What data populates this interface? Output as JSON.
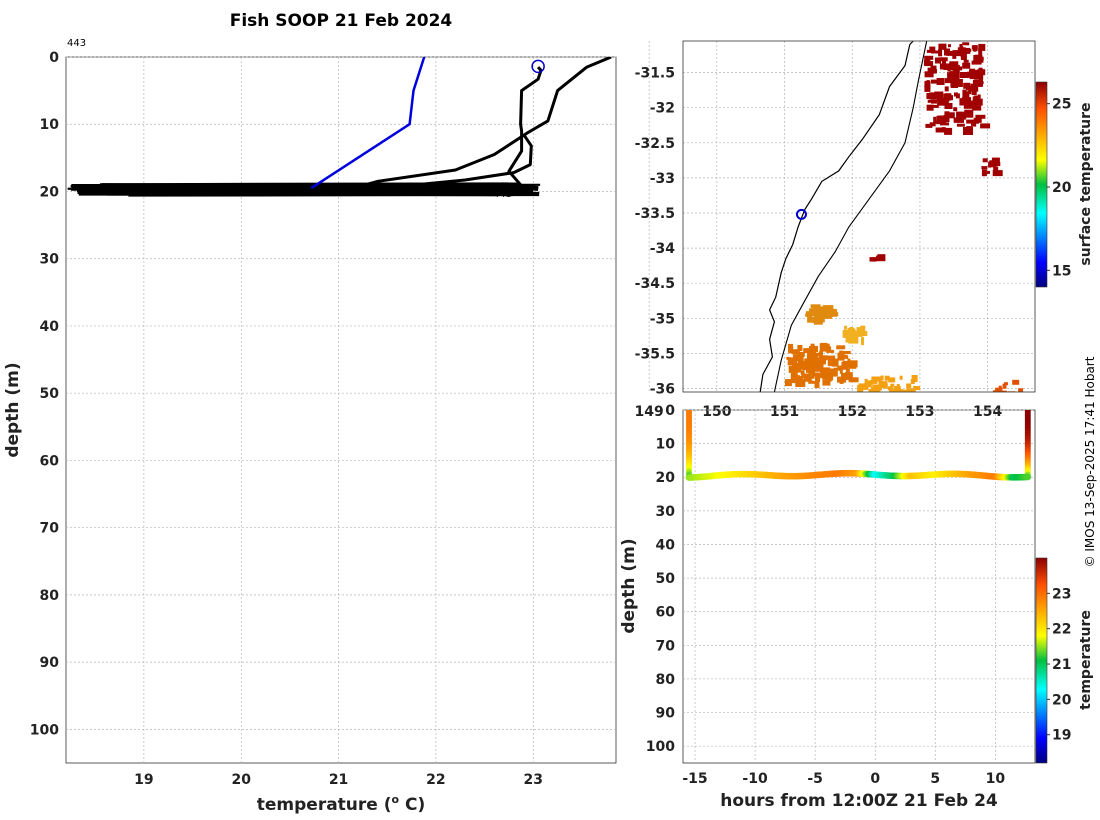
{
  "page_title": "Fish SOOP 21 Feb 2024",
  "copyright": "© IMOS 13-Sep-2025 17:41 Hobart",
  "chart_data": [
    {
      "id": "profile",
      "type": "line",
      "title": "Fish SOOP 21 Feb 2024",
      "xlabel": "temperature (",
      "xlabel_sup": "o",
      "xlabel_end": " C)",
      "ylabel": "depth (m)",
      "xlim": [
        18.2,
        23.85
      ],
      "ylim": [
        0,
        105
      ],
      "y_inverted": true,
      "xticks": [
        "19",
        "20",
        "21",
        "22",
        "23"
      ],
      "yticks": [
        "0",
        "10",
        "20",
        "30",
        "40",
        "50",
        "60",
        "70",
        "80",
        "90",
        "100"
      ],
      "annotations": [
        "443",
        "443"
      ],
      "marker": {
        "temperature": 23.05,
        "depth": 0.8,
        "color": "#0000cc"
      },
      "series": [
        {
          "name": "profile-blue",
          "color": "#0000dd",
          "points": [
            [
              21.88,
              0
            ],
            [
              21.77,
              5
            ],
            [
              21.73,
              10
            ],
            [
              20.72,
              19.5
            ]
          ]
        },
        {
          "name": "profile-black-1",
          "color": "#000000",
          "points": [
            [
              23.05,
              1.5
            ],
            [
              23.08,
              2
            ],
            [
              23.05,
              3.3
            ],
            [
              22.88,
              5
            ],
            [
              22.87,
              10
            ],
            [
              22.88,
              11
            ],
            [
              22.88,
              14
            ],
            [
              22.75,
              17
            ],
            [
              22.9,
              19.5
            ],
            [
              23.05,
              19.7
            ]
          ]
        },
        {
          "name": "profile-black-2",
          "color": "#000000",
          "points": [
            [
              23.8,
              0
            ],
            [
              23.55,
              1.5
            ],
            [
              23.25,
              5
            ],
            [
              23.15,
              9.5
            ],
            [
              22.95,
              11.2
            ],
            [
              22.6,
              14.5
            ],
            [
              22.2,
              16.8
            ],
            [
              21.4,
              18.5
            ],
            [
              21.2,
              19.3
            ],
            [
              21.6,
              19.9
            ]
          ]
        },
        {
          "name": "profile-black-3",
          "color": "#000000",
          "points": [
            [
              22.9,
              11.5
            ],
            [
              22.98,
              13.2
            ],
            [
              22.97,
              16
            ],
            [
              22.8,
              17.2
            ],
            [
              22.3,
              18.3
            ],
            [
              21.8,
              19
            ],
            [
              21.3,
              19.5
            ]
          ]
        }
      ],
      "bottom_band": {
        "depth_min": 18.9,
        "depth_max": 20.6,
        "temp_min": 18.2,
        "temp_max": 23.08
      }
    },
    {
      "id": "map",
      "type": "heatmap",
      "xticks": [
        "149",
        "150",
        "151",
        "152",
        "153",
        "154"
      ],
      "yticks": [
        "-31.5",
        "-32",
        "-32.5",
        "-33",
        "-33.5",
        "-34",
        "-34.5",
        "-35",
        "-35.5",
        "-36"
      ],
      "xlim": [
        149.5,
        154.7
      ],
      "ylim": [
        -36.05,
        -31.05
      ],
      "colorbar": {
        "label": "surface temperature",
        "ticks": [
          "25",
          "20",
          "15"
        ],
        "range": [
          14,
          26.3
        ]
      },
      "marker": {
        "lon": 151.25,
        "lat": -33.52,
        "color": "#0000cc"
      },
      "coastline": [
        [
          150.64,
          -36.05
        ],
        [
          150.68,
          -35.8
        ],
        [
          150.82,
          -35.55
        ],
        [
          150.78,
          -35.3
        ],
        [
          150.85,
          -35.05
        ],
        [
          150.78,
          -34.88
        ],
        [
          150.87,
          -34.7
        ],
        [
          150.95,
          -34.35
        ],
        [
          151.02,
          -34.15
        ],
        [
          151.12,
          -33.95
        ],
        [
          151.2,
          -33.7
        ],
        [
          151.3,
          -33.45
        ],
        [
          151.4,
          -33.3
        ],
        [
          151.55,
          -33.05
        ],
        [
          151.8,
          -32.9
        ],
        [
          151.95,
          -32.7
        ],
        [
          152.15,
          -32.45
        ],
        [
          152.4,
          -32.1
        ],
        [
          152.55,
          -31.7
        ],
        [
          152.78,
          -31.4
        ],
        [
          152.85,
          -31.1
        ],
        [
          152.9,
          -31.05
        ]
      ],
      "shelf_edge": [
        [
          150.85,
          -36.05
        ],
        [
          150.95,
          -35.6
        ],
        [
          151.1,
          -35.1
        ],
        [
          151.3,
          -34.75
        ],
        [
          151.5,
          -34.4
        ],
        [
          151.75,
          -34.05
        ],
        [
          151.95,
          -33.7
        ],
        [
          152.25,
          -33.3
        ],
        [
          152.55,
          -32.9
        ],
        [
          152.78,
          -32.5
        ],
        [
          152.9,
          -32.0
        ],
        [
          152.98,
          -31.6
        ],
        [
          153.1,
          -31.05
        ]
      ],
      "patches": [
        {
          "lon": [
            153.05,
            153.9
          ],
          "lat": [
            -31.05,
            -32.3
          ],
          "color": "#a00000",
          "n": 150
        },
        {
          "lon": [
            153.9,
            154.1
          ],
          "lat": [
            -32.7,
            -32.9
          ],
          "color": "#a00000",
          "n": 10
        },
        {
          "lon": [
            152.2,
            152.4
          ],
          "lat": [
            -34.05,
            -34.15
          ],
          "color": "#a00000",
          "n": 5
        },
        {
          "lon": [
            151.0,
            151.95
          ],
          "lat": [
            -35.35,
            -35.9
          ],
          "color": "#e07000",
          "n": 110
        },
        {
          "lon": [
            151.3,
            151.65
          ],
          "lat": [
            -34.8,
            -35.0
          ],
          "color": "#e08a10",
          "n": 25
        },
        {
          "lon": [
            151.85,
            152.15
          ],
          "lat": [
            -35.1,
            -35.3
          ],
          "color": "#f0b020",
          "n": 18
        },
        {
          "lon": [
            152.05,
            152.9
          ],
          "lat": [
            -35.8,
            -36.05
          ],
          "color": "#f5a010",
          "n": 40
        },
        {
          "lon": [
            154.0,
            154.5
          ],
          "lat": [
            -35.85,
            -36.05
          ],
          "color": "#e05000",
          "n": 10
        }
      ]
    },
    {
      "id": "section",
      "type": "scatter",
      "xlabel": "hours from 12:00Z 21 Feb 24",
      "ylabel": "depth (m)",
      "xlim": [
        -16,
        13.3
      ],
      "ylim": [
        0,
        105
      ],
      "y_inverted": true,
      "xticks": [
        "-15",
        "-10",
        "-5",
        "0",
        "5",
        "10"
      ],
      "yticks": [
        "0",
        "10",
        "20",
        "30",
        "40",
        "50",
        "60",
        "70",
        "80",
        "90",
        "100"
      ],
      "colorbar": {
        "label": "temperature",
        "ticks": [
          "23",
          "22",
          "21",
          "20",
          "19"
        ],
        "range": [
          18.2,
          24.0
        ]
      },
      "casts": [
        {
          "hour": -15.5,
          "depth_range": [
            0,
            20
          ],
          "temp_top": 22.9,
          "temp_bottom": 21.2
        },
        {
          "hour": 12.7,
          "depth_range": [
            0,
            20
          ],
          "temp_top": 24.0,
          "temp_bottom": 21.2
        }
      ],
      "transect": {
        "depth": 19.7,
        "hours": [
          -15.5,
          -12,
          -8,
          -5,
          -3,
          -1.5,
          0,
          1.5,
          3,
          5,
          8,
          10,
          11.5,
          12.7
        ],
        "temps": [
          21.5,
          21.9,
          22.5,
          22.8,
          22.9,
          22.6,
          20.3,
          21.0,
          22.3,
          21.9,
          22.6,
          22.9,
          21.0,
          21.3
        ]
      }
    }
  ]
}
